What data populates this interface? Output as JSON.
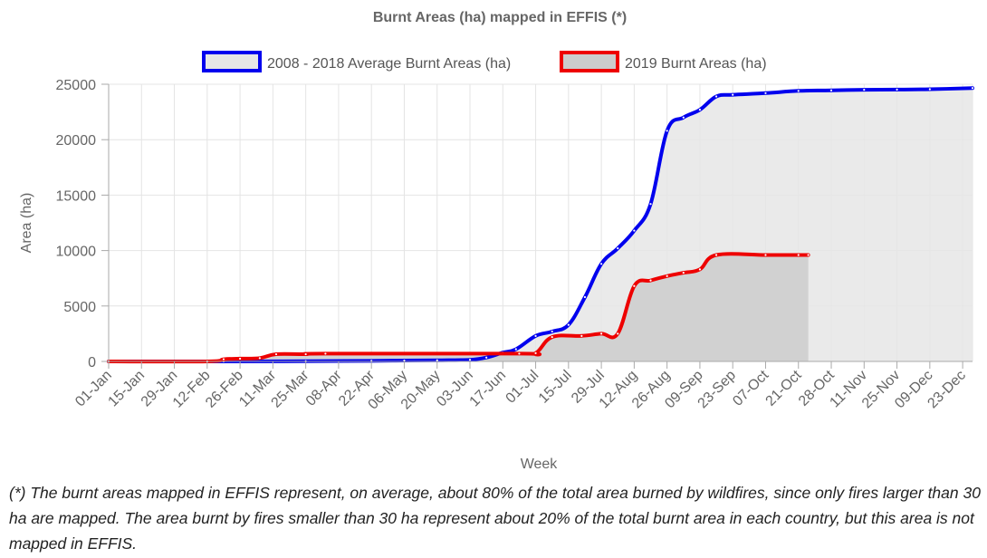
{
  "chart_data": {
    "type": "area",
    "title": "Burnt Areas (ha) mapped in EFFIS (*)",
    "xlabel": "Week",
    "ylabel": "Area (ha)",
    "ylim": [
      0,
      25000
    ],
    "y_ticks": [
      0,
      5000,
      10000,
      15000,
      20000,
      25000
    ],
    "grid": true,
    "legend_position": "top",
    "categories": [
      "01-Jan",
      "15-Jan",
      "29-Jan",
      "12-Feb",
      "26-Feb",
      "11-Mar",
      "25-Mar",
      "08-Apr",
      "22-Apr",
      "06-May",
      "20-May",
      "03-Jun",
      "17-Jun",
      "01-Jul",
      "15-Jul",
      "29-Jul",
      "12-Aug",
      "26-Aug",
      "09-Sep",
      "23-Sep",
      "07-Oct",
      "21-Oct",
      "28-Oct",
      "11-Nov",
      "25-Nov",
      "09-Dec",
      "23-Dec"
    ],
    "series": [
      {
        "name": "2008 - 2018 Average Burnt Areas (ha)",
        "color": "#0000ee",
        "fill": "#e6e6e6",
        "points": [
          [
            0,
            0
          ],
          [
            3.5,
            0
          ],
          [
            6,
            20
          ],
          [
            8,
            50
          ],
          [
            9,
            80
          ],
          [
            10,
            100
          ],
          [
            11,
            150
          ],
          [
            11.5,
            350
          ],
          [
            12,
            800
          ],
          [
            12.4,
            1100
          ],
          [
            13,
            2300
          ],
          [
            13.5,
            2700
          ],
          [
            14,
            3300
          ],
          [
            14.5,
            5800
          ],
          [
            15,
            8800
          ],
          [
            15.5,
            10200
          ],
          [
            16,
            11800
          ],
          [
            16.5,
            14200
          ],
          [
            17,
            20800
          ],
          [
            17.5,
            22000
          ],
          [
            18,
            22700
          ],
          [
            18.5,
            23900
          ],
          [
            19,
            24050
          ],
          [
            20,
            24200
          ],
          [
            21,
            24400
          ],
          [
            22,
            24450
          ],
          [
            23,
            24500
          ],
          [
            24,
            24520
          ],
          [
            25,
            24550
          ],
          [
            26.3,
            24650
          ]
        ]
      },
      {
        "name": "2019 Burnt Areas (ha)",
        "color": "#ee0000",
        "fill": "#cccccc",
        "points": [
          [
            0,
            0
          ],
          [
            3,
            0
          ],
          [
            3.5,
            200
          ],
          [
            4,
            250
          ],
          [
            4.6,
            300
          ],
          [
            5.1,
            650
          ],
          [
            6,
            650
          ],
          [
            6.6,
            700
          ],
          [
            12.5,
            700
          ],
          [
            13,
            750
          ],
          [
            13.5,
            2200
          ],
          [
            14.4,
            2300
          ],
          [
            15,
            2500
          ],
          [
            15.5,
            2500
          ],
          [
            16,
            6800
          ],
          [
            16.5,
            7300
          ],
          [
            17,
            7700
          ],
          [
            17.5,
            8000
          ],
          [
            18,
            8300
          ],
          [
            18.5,
            9600
          ],
          [
            20,
            9600
          ],
          [
            21,
            9600
          ],
          [
            21.3,
            9600
          ]
        ]
      }
    ]
  },
  "footnote": "(*) The burnt areas mapped in EFFIS represent, on average, about 80% of the total area burned by wildfires, since only fires larger than 30 ha are mapped. The area burnt by fires smaller than 30 ha represent about 20% of the total burnt area in each country, but this area is not mapped in EFFIS."
}
